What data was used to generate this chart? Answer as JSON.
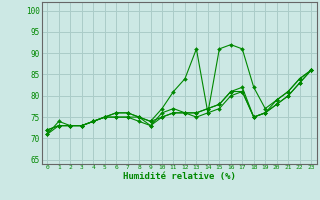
{
  "xlabel": "Humidité relative (%)",
  "bg_color": "#cce8e4",
  "grid_color": "#aaccc8",
  "line_color": "#008800",
  "xlim": [
    -0.5,
    23.5
  ],
  "ylim": [
    64,
    102
  ],
  "yticks": [
    65,
    70,
    75,
    80,
    85,
    90,
    95,
    100
  ],
  "xticks": [
    0,
    1,
    2,
    3,
    4,
    5,
    6,
    7,
    8,
    9,
    10,
    11,
    12,
    13,
    14,
    15,
    16,
    17,
    18,
    19,
    20,
    21,
    22,
    23
  ],
  "series": [
    [
      71,
      74,
      73,
      73,
      74,
      75,
      75,
      75,
      75,
      74,
      77,
      81,
      84,
      91,
      76,
      91,
      92,
      91,
      82,
      77,
      79,
      81,
      84,
      86
    ],
    [
      72,
      73,
      73,
      73,
      74,
      75,
      76,
      76,
      75,
      74,
      75,
      76,
      76,
      76,
      77,
      78,
      81,
      82,
      75,
      76,
      79,
      81,
      84,
      86
    ],
    [
      71,
      73,
      73,
      73,
      74,
      75,
      75,
      75,
      74,
      73,
      75,
      76,
      76,
      75,
      76,
      77,
      80,
      81,
      75,
      76,
      78,
      80,
      83,
      86
    ],
    [
      72,
      73,
      73,
      73,
      74,
      75,
      76,
      76,
      75,
      73,
      76,
      77,
      76,
      76,
      77,
      78,
      81,
      81,
      75,
      76,
      78,
      80,
      83,
      86
    ]
  ]
}
